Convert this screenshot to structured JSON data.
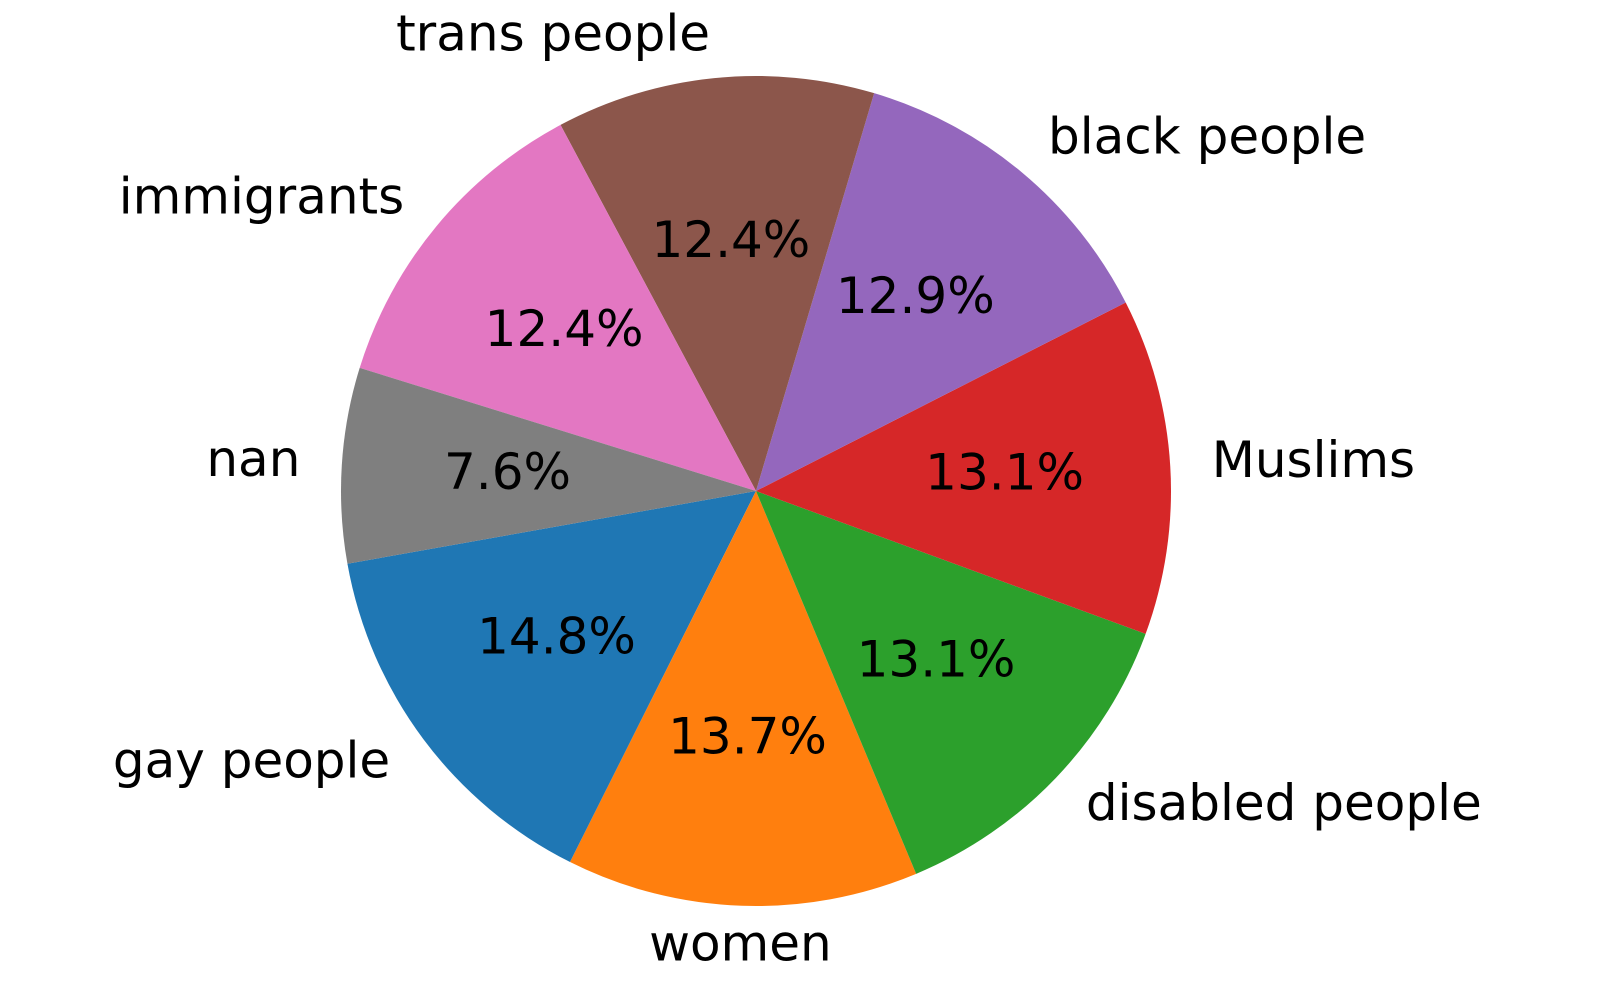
{
  "chart_data": {
    "type": "pie",
    "title": "",
    "start_angle_deg": 190.1,
    "direction": "counterclockwise",
    "slices": [
      {
        "label": "gay people",
        "percent_label": "14.8%",
        "value": 14.8,
        "color": "#1f77b4"
      },
      {
        "label": "women",
        "percent_label": "13.7%",
        "value": 13.7,
        "color": "#ff7f0e"
      },
      {
        "label": "disabled people",
        "percent_label": "13.1%",
        "value": 13.1,
        "color": "#2ca02c"
      },
      {
        "label": "Muslims",
        "percent_label": "13.1%",
        "value": 13.1,
        "color": "#d62728"
      },
      {
        "label": "black people",
        "percent_label": "12.9%",
        "value": 12.9,
        "color": "#9467bd"
      },
      {
        "label": "trans people",
        "percent_label": "12.4%",
        "value": 12.4,
        "color": "#8c564b"
      },
      {
        "label": "immigrants",
        "percent_label": "12.4%",
        "value": 12.4,
        "color": "#e377c2"
      },
      {
        "label": "nan",
        "percent_label": "7.6%",
        "value": 7.6,
        "color": "#7f7f7f"
      }
    ]
  }
}
